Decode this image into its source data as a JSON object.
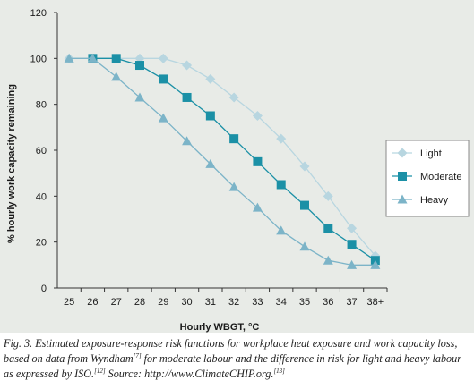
{
  "chart_data": {
    "type": "line",
    "xlabel": "Hourly WBGT, °C",
    "ylabel": "% hourly work capacity remaining",
    "categories": [
      "25",
      "26",
      "27",
      "28",
      "29",
      "30",
      "31",
      "32",
      "33",
      "34",
      "35",
      "36",
      "37",
      "38+"
    ],
    "yticks": [
      "0",
      "20",
      "40",
      "60",
      "80",
      "100",
      "120"
    ],
    "ylim": [
      0,
      120
    ],
    "grid": false,
    "legend_position": "right",
    "series": [
      {
        "name": "Light",
        "color": "#b8d6e0",
        "marker": "diamond",
        "x": [
          "25",
          "26",
          "27",
          "28",
          "29",
          "30",
          "31",
          "32",
          "33",
          "34",
          "35",
          "36",
          "37",
          "38+"
        ],
        "values": [
          100,
          100,
          100,
          100,
          100,
          97,
          91,
          83,
          75,
          65,
          53,
          40,
          26,
          14
        ]
      },
      {
        "name": "Moderate",
        "color": "#1b90a6",
        "marker": "square",
        "x": [
          "26",
          "27",
          "28",
          "29",
          "30",
          "31",
          "32",
          "33",
          "34",
          "35",
          "36",
          "37",
          "38+"
        ],
        "values": [
          100,
          100,
          97,
          91,
          83,
          75,
          65,
          55,
          45,
          36,
          26,
          19,
          12
        ]
      },
      {
        "name": "Heavy",
        "color": "#7cb4c8",
        "marker": "triangle",
        "x": [
          "25",
          "26",
          "27",
          "28",
          "29",
          "30",
          "31",
          "32",
          "33",
          "34",
          "35",
          "36",
          "37",
          "38+"
        ],
        "values": [
          100,
          100,
          92,
          83,
          74,
          64,
          54,
          44,
          35,
          25,
          18,
          12,
          10,
          10
        ]
      }
    ]
  },
  "caption": {
    "lead": "Fig. 3. Estimated exposure-response risk functions for workplace heat exposure and work capacity loss, based on data from Wyndham",
    "ref1": "[7]",
    "middle": " for moderate labour and the difference in risk for light and heavy labour as expressed by ISO.",
    "ref2": "[12]",
    "source": " Source: http://www.ClimateCHIP.org.",
    "ref3": "[13]"
  }
}
